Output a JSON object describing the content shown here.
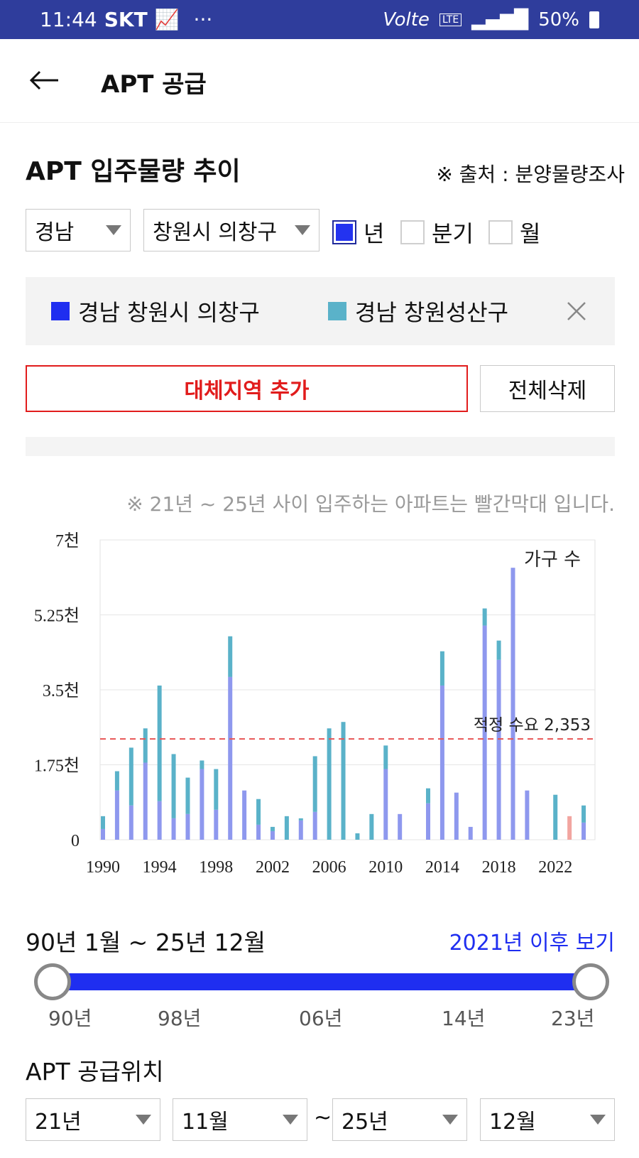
{
  "status_bar": {
    "time": "11:44",
    "carrier": "SKT",
    "network": "Volte",
    "battery": "50%"
  },
  "header": {
    "title": "APT 공급"
  },
  "section": {
    "title": "APT 입주물량 추이",
    "source": "※ 출처 : 분양물량조사"
  },
  "filters": {
    "province": "경남",
    "district": "창원시 의창구",
    "period_options": [
      {
        "label": "년",
        "checked": true
      },
      {
        "label": "분기",
        "checked": false
      },
      {
        "label": "월",
        "checked": false
      }
    ]
  },
  "legend": {
    "items": [
      {
        "label": "경남 창원시 의창구",
        "color": "#1f2ef0"
      },
      {
        "label": "경남 창원성산구",
        "color": "#5ab2c9"
      }
    ]
  },
  "buttons": {
    "add_region": "대체지역 추가",
    "delete_all": "전체삭제"
  },
  "chart_note": "※ 21년 ~ 25년 사이 입주하는 아파트는 빨간막대 입니다.",
  "chart_data": {
    "type": "bar",
    "stacked": true,
    "ylabel": "가구 수",
    "y_ticks": [
      "0",
      "1.75천",
      "3.5천",
      "5.25천",
      "7천"
    ],
    "ylim": [
      0,
      7000
    ],
    "x_ticks": [
      "1990",
      "1994",
      "1998",
      "2002",
      "2006",
      "2010",
      "2014",
      "2018",
      "2022"
    ],
    "categories": [
      1990,
      1991,
      1992,
      1993,
      1994,
      1995,
      1996,
      1997,
      1998,
      1999,
      2000,
      2001,
      2002,
      2003,
      2004,
      2005,
      2006,
      2007,
      2008,
      2009,
      2010,
      2011,
      2012,
      2013,
      2014,
      2015,
      2016,
      2017,
      2018,
      2019,
      2020,
      2021,
      2022,
      2023,
      2024
    ],
    "series": [
      {
        "name": "경남 창원시 의창구",
        "color": "#8e98ee",
        "values": [
          250,
          1150,
          800,
          1800,
          900,
          500,
          600,
          1650,
          700,
          3800,
          1150,
          350,
          200,
          0,
          450,
          650,
          0,
          0,
          0,
          0,
          1650,
          600,
          0,
          850,
          3600,
          1100,
          300,
          5000,
          4200,
          6350,
          1150,
          0,
          0,
          0,
          400
        ]
      },
      {
        "name": "경남 창원성산구",
        "color": "#5ab2c9",
        "values": [
          300,
          450,
          1350,
          800,
          2700,
          1500,
          850,
          200,
          950,
          950,
          0,
          600,
          100,
          550,
          50,
          1300,
          2600,
          2750,
          150,
          600,
          550,
          0,
          0,
          350,
          800,
          0,
          0,
          400,
          450,
          0,
          0,
          0,
          1050,
          0,
          400
        ]
      },
      {
        "name": "21~25 입주",
        "color": "#f2a5a0",
        "values": [
          0,
          0,
          0,
          0,
          0,
          0,
          0,
          0,
          0,
          0,
          0,
          0,
          0,
          0,
          0,
          0,
          0,
          0,
          0,
          0,
          0,
          0,
          0,
          0,
          0,
          0,
          0,
          0,
          0,
          0,
          0,
          0,
          0,
          550,
          0
        ]
      }
    ],
    "reference_line": {
      "label": "적정 수요 2,353",
      "value": 2353,
      "color": "#e85555"
    },
    "grid": true
  },
  "range": {
    "text": "90년 1월 ~ 25년 12월",
    "link": "2021년 이후 보기",
    "ticks": [
      "90년",
      "98년",
      "06년",
      "14년",
      "23년"
    ],
    "start_fraction": 0,
    "end_fraction": 1
  },
  "location": {
    "title": "APT 공급위치",
    "start_year": "21년",
    "start_month": "11월",
    "separator": "~",
    "end_year": "25년",
    "end_month": "12월"
  }
}
